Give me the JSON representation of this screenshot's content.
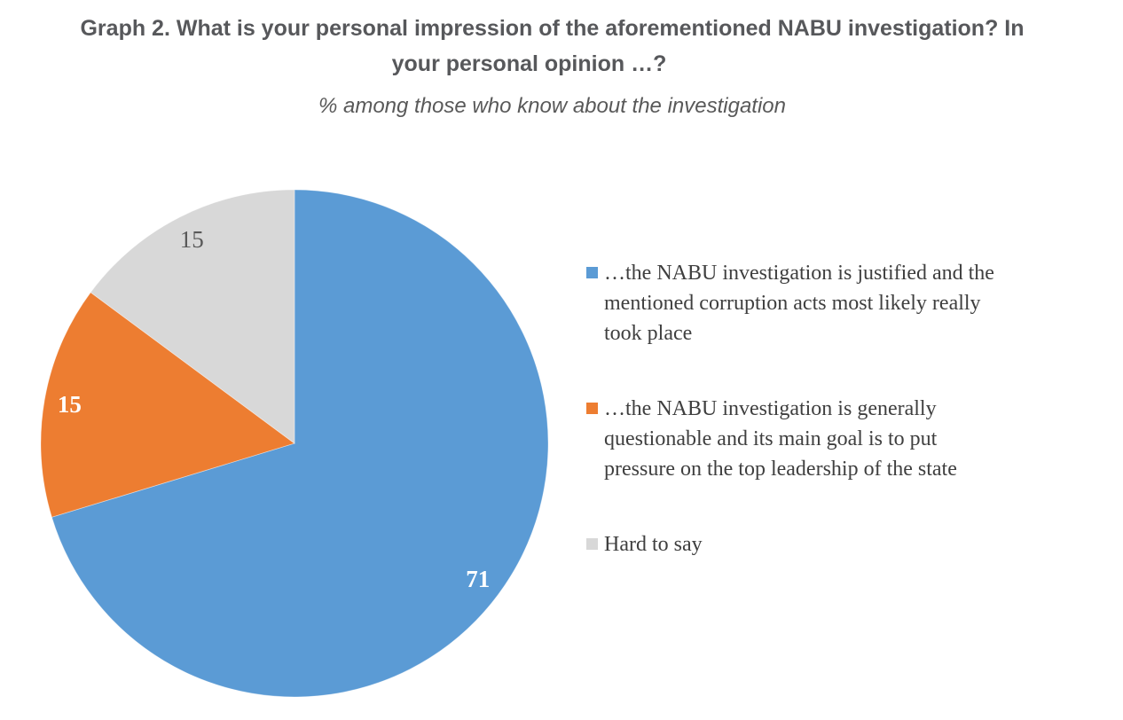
{
  "header": {
    "title_lines": [
      "Graph 2. What is your personal impression of the aforementioned NABU investigation? In",
      "your personal opinion …?"
    ],
    "subtitle": "% among those who know about the investigation"
  },
  "chart_data": {
    "type": "pie",
    "title": "Graph 2. What is your personal impression of the aforementioned NABU investigation? In your personal opinion …?",
    "subtitle": "% among those who know about the investigation",
    "unit": "%",
    "start_angle": "top",
    "direction": "clockwise",
    "legend_position": "right",
    "value_label_radius_fraction": 0.9,
    "slices": [
      {
        "label": "…the NABU investigation is justified and the mentioned corruption acts most likely really took place",
        "value": 71,
        "value_label": "71",
        "color": "#5B9BD5",
        "value_label_color": "#FFFFFF",
        "value_label_bold": true
      },
      {
        "label": "…the NABU investigation is generally questionable and its main goal is to put pressure on the top leadership of the state",
        "value": 15,
        "value_label": "15",
        "color": "#ED7D31",
        "value_label_color": "#FFFFFF",
        "value_label_bold": true
      },
      {
        "label": "Hard to say",
        "value": 15,
        "value_label": "15",
        "color": "#D8D8D8",
        "value_label_color": "#595959",
        "value_label_bold": false
      }
    ]
  },
  "colors": {
    "title_text": "#57585B",
    "subtitle_text": "#595959",
    "legend_text": "#3F3F3F",
    "background": "#FFFFFF"
  }
}
